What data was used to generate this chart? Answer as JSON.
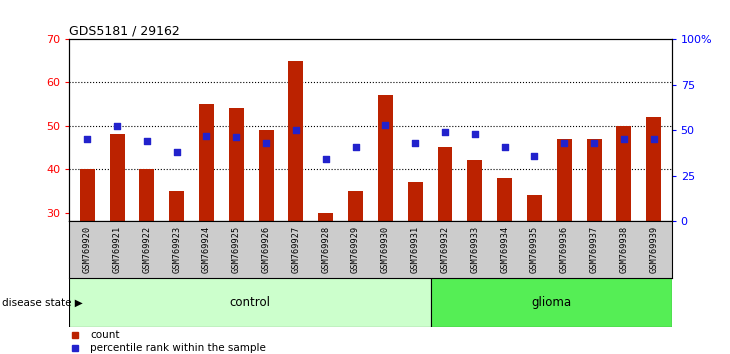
{
  "title": "GDS5181 / 29162",
  "samples": [
    "GSM769920",
    "GSM769921",
    "GSM769922",
    "GSM769923",
    "GSM769924",
    "GSM769925",
    "GSM769926",
    "GSM769927",
    "GSM769928",
    "GSM769929",
    "GSM769930",
    "GSM769931",
    "GSM769932",
    "GSM769933",
    "GSM769934",
    "GSM769935",
    "GSM769936",
    "GSM769937",
    "GSM769938",
    "GSM769939"
  ],
  "counts": [
    40,
    48,
    40,
    35,
    55,
    54,
    49,
    65,
    30,
    35,
    57,
    37,
    45,
    42,
    38,
    34,
    47,
    47,
    50,
    52
  ],
  "percentiles_pct": [
    45,
    52,
    44,
    38,
    47,
    46,
    43,
    50,
    34,
    41,
    53,
    43,
    49,
    48,
    41,
    36,
    43,
    43,
    45,
    45
  ],
  "control_count": 12,
  "glioma_count": 8,
  "left_ylim": [
    28,
    70
  ],
  "left_yticks": [
    30,
    40,
    50,
    60,
    70
  ],
  "right_yticks": [
    0,
    25,
    50,
    75,
    100
  ],
  "bar_color": "#bb2200",
  "dot_color": "#2222cc",
  "control_bg": "#ccffcc",
  "glioma_bg": "#55ee55",
  "label_bg": "#cccccc",
  "plot_bg": "#ffffff",
  "legend_bar_label": "count",
  "legend_dot_label": "percentile rank within the sample",
  "control_label": "control",
  "glioma_label": "glioma",
  "disease_state_label": "disease state"
}
